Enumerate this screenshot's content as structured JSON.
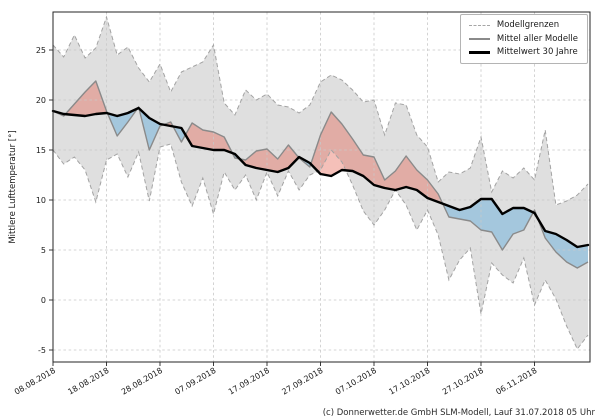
{
  "figure": {
    "caption": "(c) Donnerwetter.de GmbH SLM-Modell, Lauf 31.07.2018 05 Uhr"
  },
  "legend": {
    "position": "upper right",
    "entries": [
      {
        "label": "Modellgrenzen",
        "style": "dashed-gray"
      },
      {
        "label": "Mittel aller Modelle",
        "style": "solid-gray"
      },
      {
        "label": "Mittelwert 30 Jahre",
        "style": "thick-black"
      }
    ]
  },
  "chart_data": {
    "type": "line",
    "title": "",
    "xlabel": "",
    "ylabel": "Mittlere Lufttemperatur [°]",
    "grid": true,
    "y_ticks": [
      -5,
      0,
      5,
      10,
      15,
      20,
      25
    ],
    "ylim": [
      -6.2,
      28.8
    ],
    "xlim_days": [
      0,
      100.4
    ],
    "x_tick_labels": [
      "08.08.2018",
      "18.08.2018",
      "28.08.2018",
      "07.09.2018",
      "17.09.2018",
      "27.09.2018",
      "07.10.2018",
      "17.10.2018",
      "27.10.2018",
      "06.11.2018"
    ],
    "x_tick_days": [
      0,
      10,
      20,
      30,
      40,
      50,
      60,
      70,
      80,
      90
    ],
    "x_days": [
      0,
      2,
      4,
      6,
      8,
      10,
      12,
      14,
      16,
      18,
      20,
      22,
      24,
      26,
      28,
      30,
      32,
      34,
      36,
      38,
      40,
      42,
      44,
      46,
      48,
      50,
      52,
      54,
      56,
      58,
      60,
      62,
      64,
      66,
      68,
      70,
      72,
      74,
      76,
      78,
      80,
      82,
      84,
      86,
      88,
      90,
      92,
      94,
      96,
      98,
      100
    ],
    "series": [
      {
        "name": "Modellgrenzen",
        "role": "upper_bound",
        "line": "dashed",
        "color": "#a3a3a3",
        "values": [
          25.5,
          24.3,
          26.5,
          24.2,
          25.2,
          28.3,
          24.5,
          25.3,
          23.2,
          21.8,
          23.6,
          20.8,
          22.8,
          23.3,
          23.8,
          25.5,
          19.7,
          18.5,
          21.0,
          20.0,
          20.6,
          19.5,
          19.3,
          18.7,
          19.5,
          21.8,
          22.5,
          22.0,
          21.0,
          19.8,
          20.0,
          16.5,
          19.7,
          19.5,
          16.5,
          15.3,
          11.8,
          12.8,
          12.6,
          13.2,
          16.3,
          10.8,
          12.9,
          12.2,
          13.2,
          12.0,
          17.0,
          9.5,
          9.9,
          10.5,
          11.6
        ]
      },
      {
        "name": "Modellgrenzen",
        "role": "lower_bound",
        "line": "dashed",
        "color": "#a3a3a3",
        "values": [
          15.0,
          13.6,
          14.3,
          13.0,
          9.8,
          14.0,
          14.6,
          12.3,
          14.8,
          9.9,
          15.3,
          15.6,
          11.8,
          9.4,
          12.2,
          8.6,
          12.8,
          11.0,
          12.5,
          10.0,
          12.8,
          10.4,
          12.9,
          11.0,
          12.5,
          13.0,
          15.0,
          13.8,
          11.5,
          8.9,
          7.5,
          9.0,
          11.0,
          9.5,
          7.0,
          9.0,
          6.5,
          2.0,
          4.0,
          5.2,
          -1.4,
          3.7,
          2.5,
          1.7,
          4.2,
          -0.5,
          2.0,
          0.1,
          -2.6,
          -4.9,
          -3.5
        ]
      },
      {
        "name": "Mittel aller Modelle",
        "role": "model_mean",
        "line": "solid",
        "color": "#8a8a8a",
        "values": [
          18.9,
          18.4,
          19.6,
          20.8,
          21.9,
          18.9,
          16.4,
          17.8,
          19.3,
          15.0,
          17.4,
          17.8,
          15.8,
          17.7,
          17.0,
          16.8,
          16.3,
          14.2,
          14.0,
          14.9,
          15.1,
          14.1,
          15.5,
          14.2,
          13.3,
          16.5,
          18.8,
          17.6,
          16.1,
          14.5,
          14.3,
          12.0,
          12.9,
          14.4,
          13.0,
          12.0,
          10.6,
          8.3,
          8.1,
          7.9,
          7.0,
          6.8,
          5.0,
          6.6,
          7.0,
          9.0,
          6.2,
          4.8,
          3.8,
          3.2,
          3.8
        ]
      },
      {
        "name": "Mittelwert 30 Jahre",
        "role": "climate_mean_30yr",
        "line": "solid-thick",
        "color": "#000000",
        "values": [
          18.9,
          18.6,
          18.5,
          18.4,
          18.6,
          18.7,
          18.4,
          18.7,
          19.2,
          18.2,
          17.6,
          17.4,
          17.2,
          15.4,
          15.2,
          15.0,
          15.0,
          14.6,
          13.5,
          13.2,
          13.0,
          12.8,
          13.2,
          14.3,
          13.7,
          12.6,
          12.4,
          13.0,
          12.9,
          12.4,
          11.5,
          11.2,
          11.0,
          11.3,
          11.0,
          10.2,
          9.8,
          9.4,
          9.0,
          9.3,
          10.1,
          10.1,
          8.6,
          9.2,
          9.2,
          8.7,
          6.9,
          6.6,
          6.0,
          5.3,
          5.5
        ]
      }
    ],
    "fills": {
      "band_fill": "#dfdfdf",
      "warm_fill": "rgba(229,90,70,0.38)",
      "cold_fill": "rgba(105,175,220,0.5)",
      "grid_color": "#c9c9c9",
      "spine_color": "#262626"
    }
  }
}
